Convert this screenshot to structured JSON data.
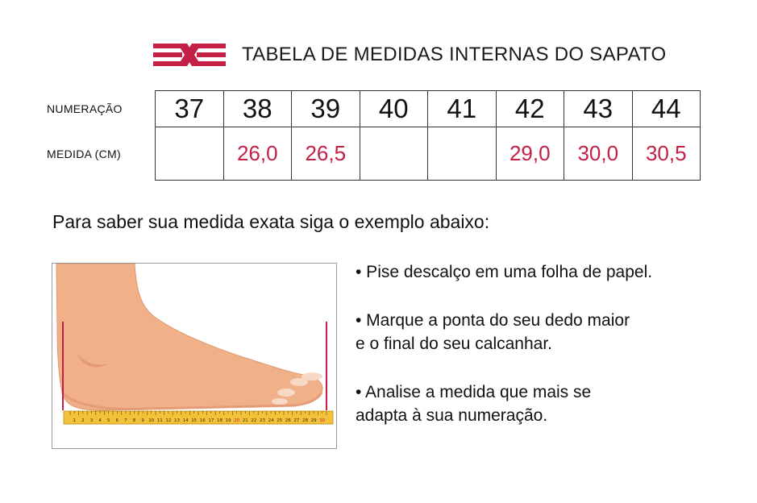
{
  "header": {
    "title": "TABELA DE MEDIDAS INTERNAS DO SAPATO",
    "brand_color": "#c41f45"
  },
  "table": {
    "row_labels": {
      "numeracao": "NUMERAÇÃO",
      "medida": "MEDIDA (CM)"
    },
    "sizes": [
      "37",
      "38",
      "39",
      "40",
      "41",
      "42",
      "43",
      "44"
    ],
    "measurements": [
      "",
      "26,0",
      "26,5",
      "",
      "",
      "29,0",
      "30,0",
      "30,5"
    ]
  },
  "instruction": "Para saber sua medida exata siga o exemplo abaixo:",
  "ruler": {
    "numbers": [
      "1",
      "2",
      "3",
      "4",
      "5",
      "6",
      "7",
      "8",
      "9",
      "10",
      "11",
      "12",
      "13",
      "14",
      "15",
      "16",
      "17",
      "18",
      "19",
      "20",
      "21",
      "22",
      "23",
      "24",
      "25",
      "26",
      "27",
      "28",
      "29",
      "30"
    ],
    "highlight_numbers": [
      "20",
      "30"
    ]
  },
  "bullets": [
    {
      "lines": [
        "• Pise descalço em uma folha de papel."
      ]
    },
    {
      "lines": [
        "• Marque a ponta do seu dedo maior",
        "e o final do seu calcanhar."
      ]
    },
    {
      "lines": [
        "• Analise a medida que mais se",
        "adapta à sua numeração."
      ]
    }
  ],
  "icons": {
    "logo": "brand-logo-icon",
    "foot": "foot-illustration-icon",
    "ruler": "ruler-icon"
  }
}
